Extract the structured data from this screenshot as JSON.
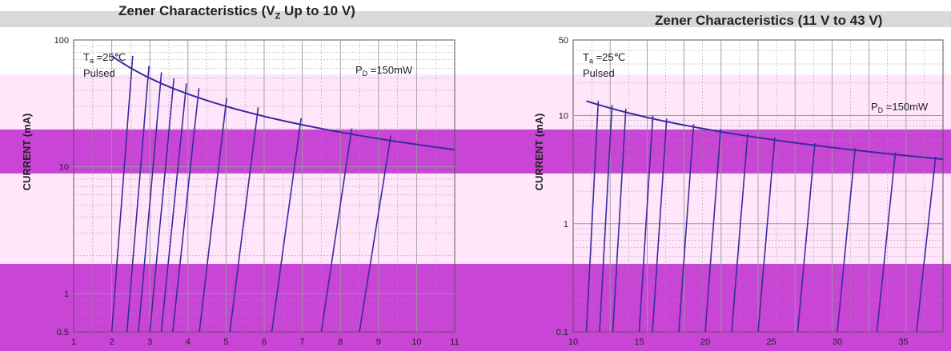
{
  "chart_data": [
    {
      "type": "line",
      "title": "Zener Characteristics (V",
      "title_sub": "Z",
      "title_rest": " Up to 10 V)",
      "ylabel": "CURRENT (mA)",
      "xlabel": "",
      "y_scale": "log",
      "ylim": [
        0.5,
        100
      ],
      "xlim": [
        1,
        11
      ],
      "y_ticks": [
        "100",
        "10",
        "1",
        "0.5"
      ],
      "x_ticks": [
        "1",
        "2",
        "3",
        "4",
        "5",
        "6",
        "7",
        "8",
        "9",
        "10",
        "11"
      ],
      "annotations": {
        "ta_label": "T",
        "ta_sub": "a",
        "ta_value": " =25℃",
        "pulsed": "Pulsed",
        "pd_label": "P",
        "pd_sub": "D",
        "pd_value": " =150mW"
      },
      "curves_vz": [
        2.0,
        2.4,
        2.7,
        3.0,
        3.3,
        3.6,
        4.3,
        5.1,
        6.2,
        7.5,
        8.5
      ],
      "power_limit_mw": 150,
      "grid": true
    },
    {
      "type": "line",
      "title": "Zener Characteristics (11 V to 43 V)",
      "ylabel": "CURRENT (mA)",
      "xlabel": "",
      "y_scale": "log",
      "ylim": [
        0.1,
        50
      ],
      "xlim": [
        10,
        38
      ],
      "y_ticks": [
        "50",
        "10",
        "1",
        "0.1"
      ],
      "x_ticks": [
        "10",
        "15",
        "20",
        "25",
        "30",
        "35"
      ],
      "annotations": {
        "ta_label": "T",
        "ta_sub": "a",
        "ta_value": " =25℃",
        "pulsed": "Pulsed",
        "pd_label": "P",
        "pd_sub": "D",
        "pd_value": " =150mW"
      },
      "curves_vz": [
        11,
        12,
        13,
        15,
        16,
        18,
        20,
        22,
        24,
        27,
        30,
        33,
        36
      ],
      "power_limit_mw": 150,
      "grid": true
    }
  ],
  "colors": {
    "band_lightpink": "#ffe6fb",
    "band_magenta": "#c845d6",
    "band_gray": "#d9d9d9",
    "curve_dark": "#3b2a9e",
    "curve_light": "#a099d6",
    "grid": "#9a9a9a",
    "text": "#222222"
  }
}
